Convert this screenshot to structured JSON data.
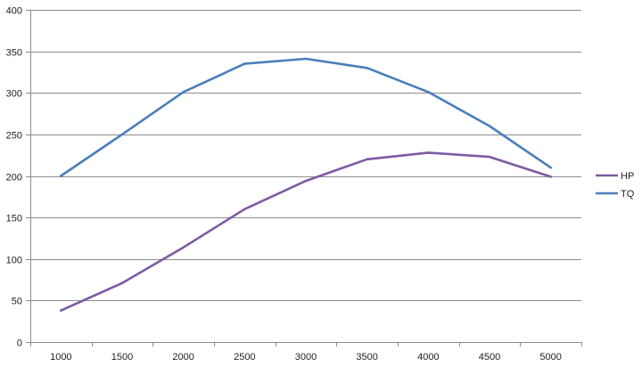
{
  "chart_data": {
    "type": "line",
    "categories": [
      "1000",
      "1500",
      "2000",
      "2500",
      "3000",
      "3500",
      "4000",
      "4500",
      "5000"
    ],
    "series": [
      {
        "name": "HP",
        "color": "#7e5aa3",
        "values": [
          38,
          71,
          114,
          160,
          194,
          220,
          228,
          223,
          199
        ]
      },
      {
        "name": "TQ",
        "color": "#4a7ebb",
        "values": [
          200,
          250,
          301,
          335,
          341,
          330,
          301,
          260,
          210
        ]
      }
    ],
    "ylim": [
      0,
      400
    ],
    "yticks": [
      0,
      50,
      100,
      150,
      200,
      250,
      300,
      350,
      400
    ],
    "grid": true,
    "legend_position": "right",
    "title": "",
    "xlabel": "",
    "ylabel": ""
  }
}
